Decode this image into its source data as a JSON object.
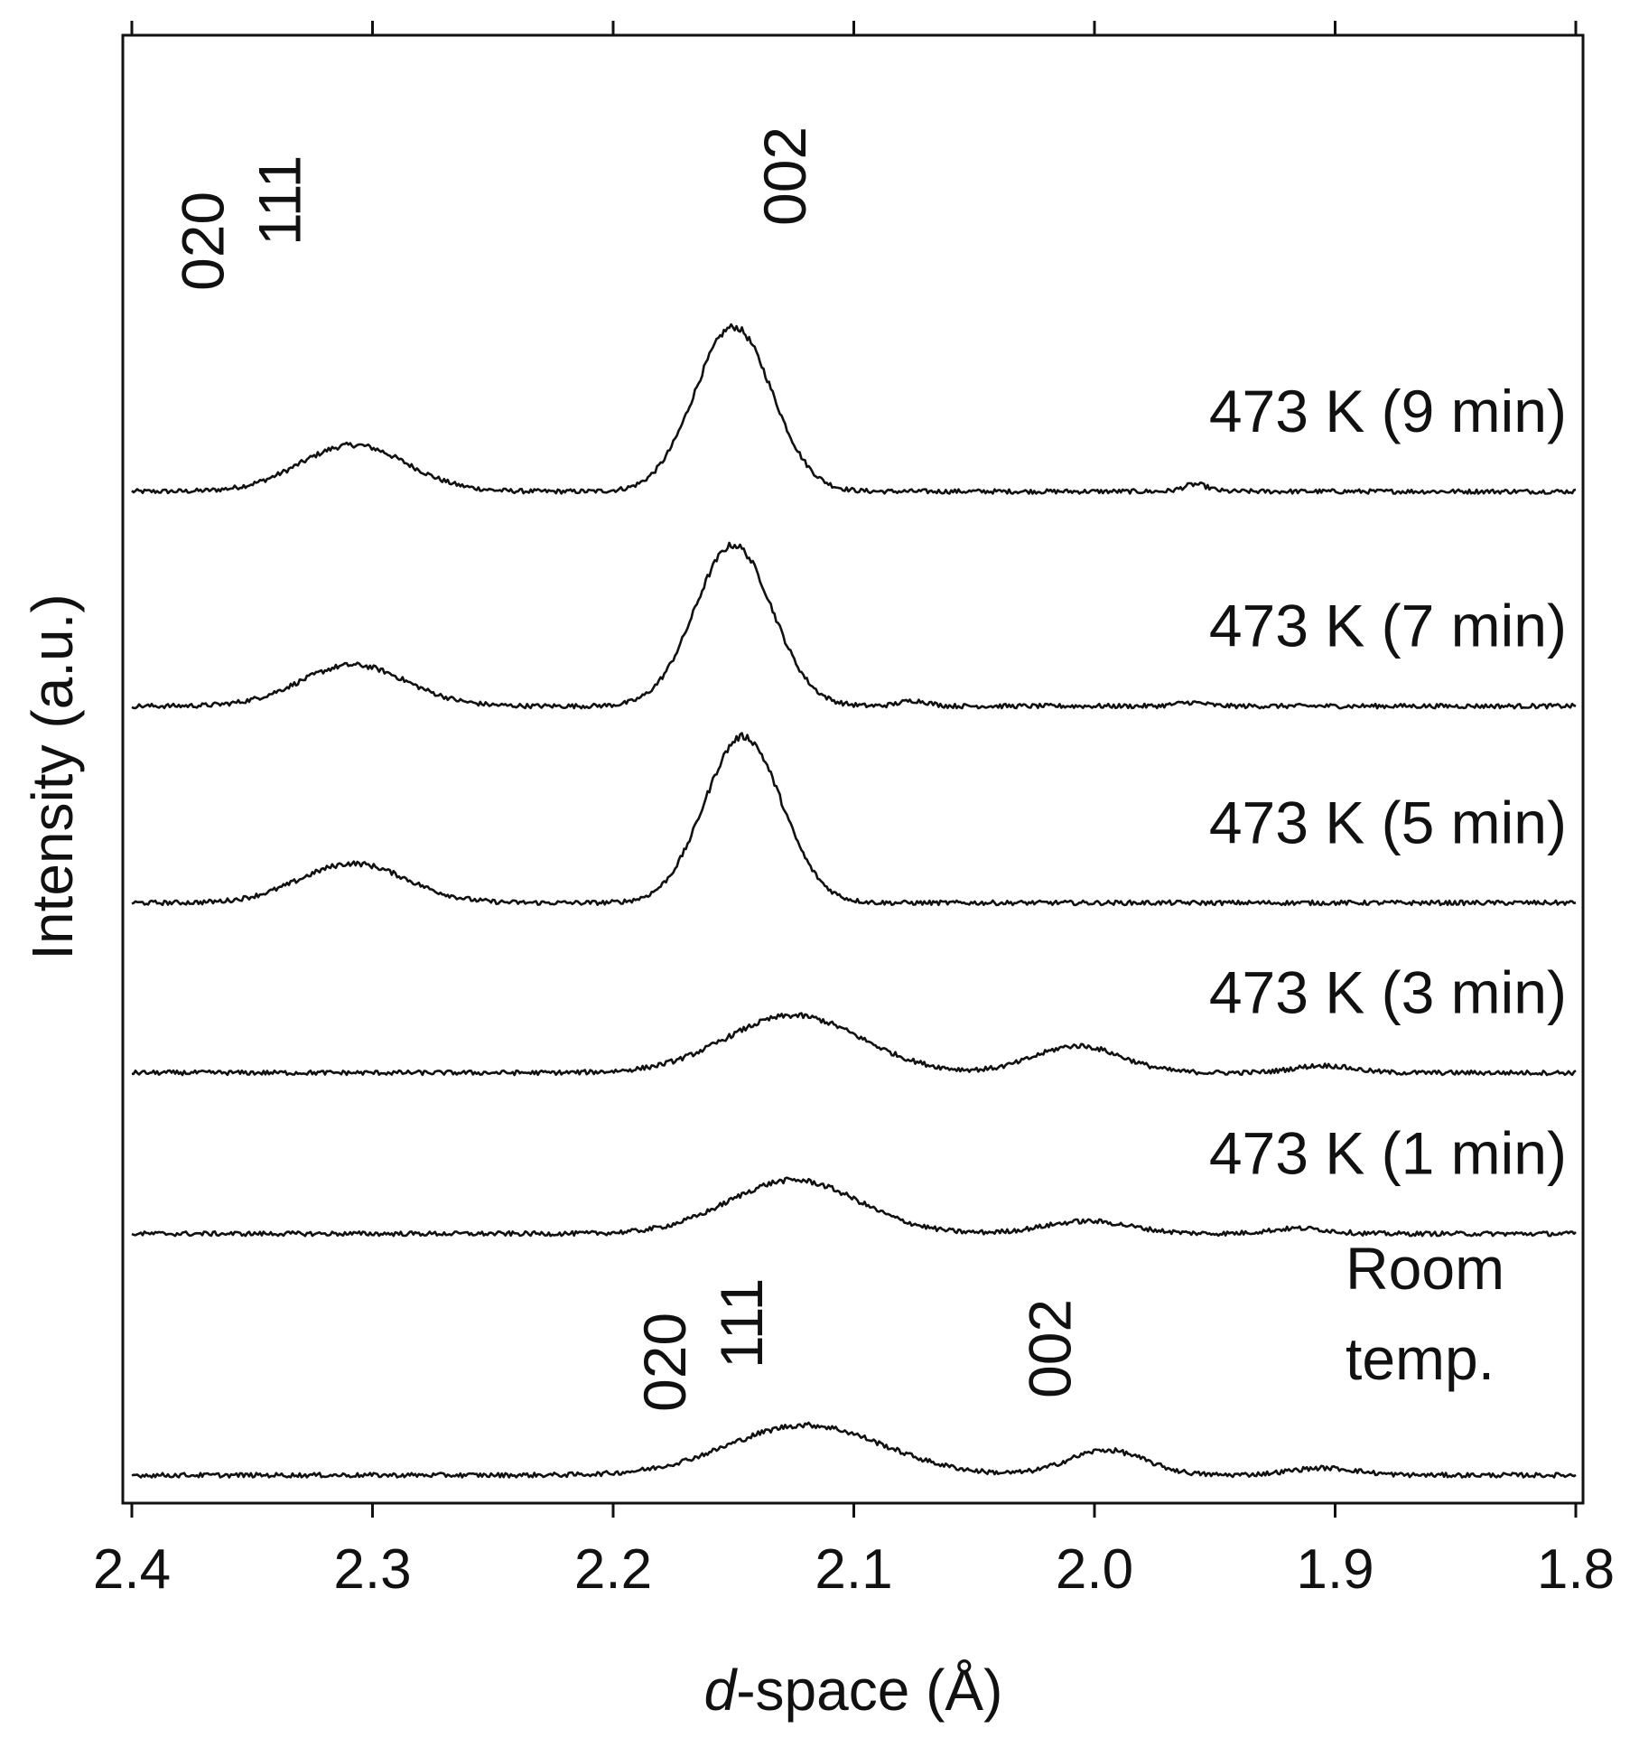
{
  "chart_data": {
    "type": "line",
    "xlabel_prefix": "d",
    "xlabel_suffix": "-space (Å)",
    "ylabel": "Intensity (a.u.)",
    "xlim": [
      2.4,
      1.8
    ],
    "x_reversed": true,
    "xticks": [
      2.4,
      2.3,
      2.2,
      2.1,
      2.0,
      1.9,
      1.8
    ],
    "xtick_labels": [
      "2.4",
      "2.3",
      "2.2",
      "2.1",
      "2.0",
      "1.9",
      "1.8"
    ],
    "grid": false,
    "baseline": 0.02,
    "series": [
      {
        "name": "473 K (9 min)",
        "label_lines": [
          "473 K (9 min)"
        ],
        "offset": 5.5,
        "peaks": [
          {
            "x": 2.308,
            "height": 0.26,
            "width": 0.022
          },
          {
            "x": 2.15,
            "height": 0.92,
            "width": 0.016
          },
          {
            "x": 1.958,
            "height": 0.04,
            "width": 0.005
          }
        ]
      },
      {
        "name": "473 K (7 min)",
        "label_lines": [
          "473 K (7 min)"
        ],
        "offset": 4.3,
        "peaks": [
          {
            "x": 2.308,
            "height": 0.23,
            "width": 0.022
          },
          {
            "x": 2.15,
            "height": 0.9,
            "width": 0.016
          },
          {
            "x": 2.075,
            "height": 0.03,
            "width": 0.006
          },
          {
            "x": 1.96,
            "height": 0.02,
            "width": 0.006
          }
        ]
      },
      {
        "name": "473 K (5 min)",
        "label_lines": [
          "473 K (5 min)"
        ],
        "offset": 3.2,
        "peaks": [
          {
            "x": 2.308,
            "height": 0.22,
            "width": 0.022
          },
          {
            "x": 2.146,
            "height": 0.93,
            "width": 0.016
          }
        ]
      },
      {
        "name": "473 K (3 min)",
        "label_lines": [
          "473 K (3 min)"
        ],
        "offset": 2.25,
        "peaks": [
          {
            "x": 2.125,
            "height": 0.32,
            "width": 0.028
          },
          {
            "x": 2.007,
            "height": 0.15,
            "width": 0.018
          },
          {
            "x": 1.905,
            "height": 0.04,
            "width": 0.012
          }
        ]
      },
      {
        "name": "473 K (1 min)",
        "label_lines": [
          "473 K (1 min)"
        ],
        "offset": 1.35,
        "peaks": [
          {
            "x": 2.125,
            "height": 0.3,
            "width": 0.027
          },
          {
            "x": 2.003,
            "height": 0.07,
            "width": 0.018
          },
          {
            "x": 1.915,
            "height": 0.03,
            "width": 0.012
          }
        ]
      },
      {
        "name": "Room temp.",
        "label_lines": [
          "Room",
          "temp."
        ],
        "offset": 0.0,
        "peaks": [
          {
            "x": 2.12,
            "height": 0.28,
            "width": 0.032
          },
          {
            "x": 1.995,
            "height": 0.14,
            "width": 0.016
          },
          {
            "x": 1.905,
            "height": 0.04,
            "width": 0.014
          }
        ]
      }
    ],
    "annotations": [
      {
        "text": "020",
        "x": 2.362,
        "series": "473 K (9 min)",
        "rotation": -90
      },
      {
        "text": "111",
        "x": 2.33,
        "series": "473 K (9 min)",
        "rotation": -90
      },
      {
        "text": "002",
        "x": 2.12,
        "series": "473 K (9 min)",
        "rotation": -90
      },
      {
        "text": "020",
        "x": 2.17,
        "series": "Room temp.",
        "rotation": -90
      },
      {
        "text": "111",
        "x": 2.138,
        "series": "Room temp.",
        "rotation": -90
      },
      {
        "text": "002",
        "x": 2.01,
        "series": "Room temp.",
        "rotation": -90
      }
    ]
  }
}
